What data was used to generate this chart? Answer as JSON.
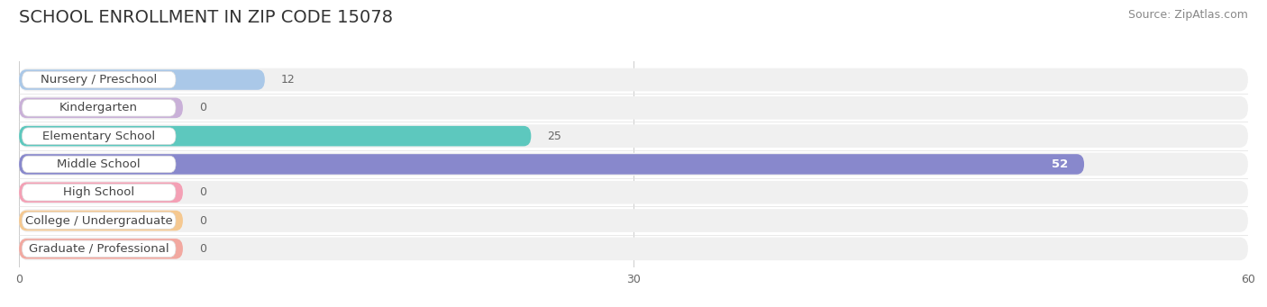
{
  "title": "SCHOOL ENROLLMENT IN ZIP CODE 15078",
  "source": "Source: ZipAtlas.com",
  "categories": [
    "Nursery / Preschool",
    "Kindergarten",
    "Elementary School",
    "Middle School",
    "High School",
    "College / Undergraduate",
    "Graduate / Professional"
  ],
  "values": [
    12,
    0,
    25,
    52,
    0,
    0,
    0
  ],
  "bar_colors": [
    "#aac8e8",
    "#c9b0d8",
    "#5dc8be",
    "#8888cc",
    "#f4a0b5",
    "#f5c890",
    "#f2a8a0"
  ],
  "zero_bar_width": 8.0,
  "row_bg_color": "#f0f0f0",
  "fig_bg_color": "#ffffff",
  "xlim": [
    0,
    60
  ],
  "xticks": [
    0,
    30,
    60
  ],
  "title_fontsize": 14,
  "source_fontsize": 9,
  "label_fontsize": 9.5,
  "value_fontsize": 9,
  "figsize": [
    14.06,
    3.41
  ],
  "dpi": 100
}
